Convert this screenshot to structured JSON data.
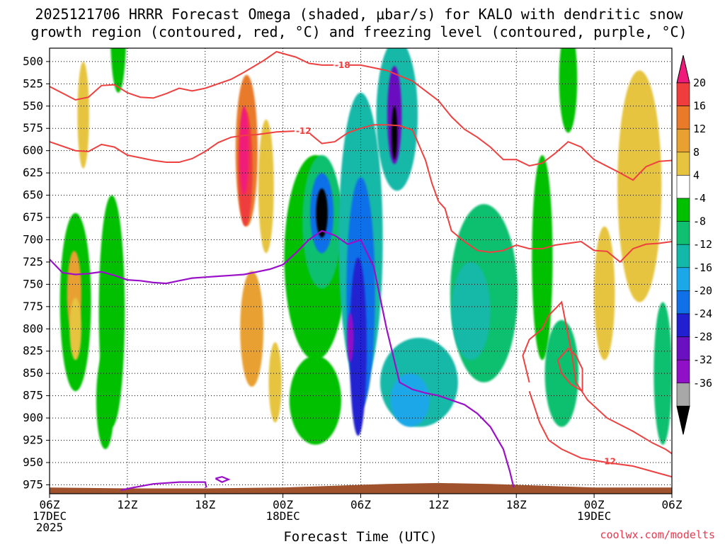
{
  "chart_data": {
    "type": "heatmap",
    "title_line1": "2025121706 HRRR Forecast Omega (shaded, μbar/s) for KALO with dendritic snow",
    "title_line2": "growth region (contoured, red, °C) and freezing level (contoured, purple, °C)",
    "xlabel": "Forecast Time (UTC)",
    "credit": "coolwx.com/modelts",
    "x_hours_range": [
      0,
      48
    ],
    "y_pressure_range": [
      485,
      985
    ],
    "y_ticks": [
      500,
      525,
      550,
      575,
      600,
      625,
      650,
      675,
      700,
      725,
      750,
      775,
      800,
      825,
      850,
      875,
      900,
      925,
      950,
      975
    ],
    "x_ticks": [
      {
        "hour": 0,
        "lines": [
          "06Z",
          "17DEC",
          "2025"
        ]
      },
      {
        "hour": 6,
        "lines": [
          "12Z"
        ]
      },
      {
        "hour": 12,
        "lines": [
          "18Z"
        ]
      },
      {
        "hour": 18,
        "lines": [
          "00Z",
          "18DEC"
        ]
      },
      {
        "hour": 24,
        "lines": [
          "06Z"
        ]
      },
      {
        "hour": 30,
        "lines": [
          "12Z"
        ]
      },
      {
        "hour": 36,
        "lines": [
          "18Z"
        ]
      },
      {
        "hour": 42,
        "lines": [
          "00Z",
          "19DEC"
        ]
      },
      {
        "hour": 48,
        "lines": [
          "06Z"
        ]
      }
    ],
    "colorbar": {
      "labels": [
        "20",
        "16",
        "12",
        "8",
        "4",
        "-4",
        "-8",
        "-12",
        "-16",
        "-20",
        "-24",
        "-28",
        "-32",
        "-36"
      ],
      "colors": [
        "#ef3d3d",
        "#e87a2a",
        "#e8a030",
        "#e6c440",
        "#ffffff",
        "#00c000",
        "#10c070",
        "#14b8a8",
        "#1ca8e8",
        "#1070e8",
        "#2020d0",
        "#6a10c0",
        "#9010c8",
        "#a8a8a8"
      ],
      "top_color": "#f01a7a",
      "bottom_color": "#000000"
    },
    "omega_cells": [
      {
        "name": "lower-lead-green",
        "t": 2.0,
        "p": 770,
        "dt": 1.2,
        "dp": 200,
        "v": -5
      },
      {
        "name": "lower-lead-green-2",
        "t": 4.3,
        "p": 880,
        "dt": 0.7,
        "dp": 110,
        "v": -7
      },
      {
        "name": "upper-green-column",
        "t": 5.3,
        "p": 470,
        "dt": 0.6,
        "dp": 130,
        "v": -5
      },
      {
        "name": "early-green-column",
        "t": 4.8,
        "p": 780,
        "dt": 1.0,
        "dp": 260,
        "v": -6
      },
      {
        "name": "left-yellow-strand",
        "t": 2.6,
        "p": 560,
        "dt": 0.45,
        "dp": 120,
        "v": 6
      },
      {
        "name": "left-orange-strand",
        "t": 1.9,
        "p": 760,
        "dt": 0.55,
        "dp": 95,
        "v": 11
      },
      {
        "name": "left-orange-low",
        "t": 2.0,
        "p": 800,
        "dt": 0.45,
        "dp": 70,
        "v": 8
      },
      {
        "name": "pink-core-outer",
        "t": 15.2,
        "p": 600,
        "dt": 0.85,
        "dp": 170,
        "v": 14
      },
      {
        "name": "pink-core-mid",
        "t": 15.1,
        "p": 620,
        "dt": 0.55,
        "dp": 130,
        "v": 19
      },
      {
        "name": "pink-core-inner",
        "t": 15.0,
        "p": 600,
        "dt": 0.35,
        "dp": 100,
        "v": 23
      },
      {
        "name": "orange-lower-trail",
        "t": 15.6,
        "p": 800,
        "dt": 0.9,
        "dp": 130,
        "v": 9
      },
      {
        "name": "yellow-flank",
        "t": 16.7,
        "p": 640,
        "dt": 0.6,
        "dp": 150,
        "v": 6
      },
      {
        "name": "yellow-lower-flank",
        "t": 17.4,
        "p": 860,
        "dt": 0.5,
        "dp": 90,
        "v": 6
      },
      {
        "name": "mid-green-mass",
        "t": 20.5,
        "p": 720,
        "dt": 2.4,
        "dp": 230,
        "v": -6
      },
      {
        "name": "mid-green-lower",
        "t": 20.5,
        "p": 880,
        "dt": 2.0,
        "dp": 100,
        "v": -7
      },
      {
        "name": "first-updraft-outer",
        "t": 21.0,
        "p": 680,
        "dt": 1.5,
        "dp": 150,
        "v": -11
      },
      {
        "name": "first-updraft-mid",
        "t": 21.0,
        "p": 670,
        "dt": 0.9,
        "dp": 90,
        "v": -20
      },
      {
        "name": "first-updraft-core",
        "t": 21.0,
        "p": 670,
        "dt": 0.45,
        "dp": 55,
        "v": -38
      },
      {
        "name": "main-column-outer",
        "t": 24.0,
        "p": 700,
        "dt": 1.7,
        "dp": 330,
        "v": -12
      },
      {
        "name": "main-column-blue",
        "t": 24.0,
        "p": 760,
        "dt": 1.1,
        "dp": 260,
        "v": -20
      },
      {
        "name": "main-column-purple",
        "t": 23.8,
        "p": 820,
        "dt": 0.65,
        "dp": 200,
        "v": -27
      },
      {
        "name": "main-column-gray",
        "t": 23.2,
        "p": 810,
        "dt": 0.25,
        "dp": 55,
        "v": -33
      },
      {
        "name": "upper-column-outer",
        "t": 26.8,
        "p": 560,
        "dt": 1.6,
        "dp": 170,
        "v": -12
      },
      {
        "name": "upper-column-purple",
        "t": 26.6,
        "p": 560,
        "dt": 0.55,
        "dp": 110,
        "v": -28
      },
      {
        "name": "upper-column-core",
        "t": 26.6,
        "p": 580,
        "dt": 0.22,
        "dp": 60,
        "v": -40
      },
      {
        "name": "lower-cyan-mass",
        "t": 28.5,
        "p": 860,
        "dt": 3.0,
        "dp": 100,
        "v": -12
      },
      {
        "name": "lower-cyan-blue",
        "t": 27.8,
        "p": 880,
        "dt": 1.5,
        "dp": 60,
        "v": -16
      },
      {
        "name": "right-green-mass",
        "t": 33.5,
        "p": 760,
        "dt": 2.6,
        "dp": 200,
        "v": -8
      },
      {
        "name": "right-cyan-mass",
        "t": 32.5,
        "p": 780,
        "dt": 1.5,
        "dp": 110,
        "v": -12
      },
      {
        "name": "late-green-strand",
        "t": 38.0,
        "p": 720,
        "dt": 0.8,
        "dp": 230,
        "v": -6
      },
      {
        "name": "late-green-low",
        "t": 39.5,
        "p": 850,
        "dt": 1.3,
        "dp": 120,
        "v": -8
      },
      {
        "name": "late-yellow",
        "t": 42.8,
        "p": 760,
        "dt": 0.8,
        "dp": 150,
        "v": 6
      },
      {
        "name": "right-orange-column",
        "t": 45.6,
        "p": 620,
        "dt": 1.2,
        "dp": 170,
        "v": 11
      },
      {
        "name": "right-yellow-column",
        "t": 45.5,
        "p": 640,
        "dt": 1.7,
        "dp": 260,
        "v": 6
      },
      {
        "name": "far-right-green",
        "t": 47.3,
        "p": 850,
        "dt": 0.7,
        "dp": 160,
        "v": -8
      },
      {
        "name": "upper-right-green",
        "t": 40.0,
        "p": 520,
        "dt": 0.7,
        "dp": 120,
        "v": -6
      }
    ],
    "dgz_contours": [
      {
        "label": "-18",
        "label_at": [
          22.0,
          504
        ],
        "points": [
          [
            0,
            528
          ],
          [
            2,
            543
          ],
          [
            3,
            540
          ],
          [
            4,
            527
          ],
          [
            5,
            526
          ],
          [
            6,
            535
          ],
          [
            7,
            540
          ],
          [
            8,
            541
          ],
          [
            9,
            536
          ],
          [
            10,
            530
          ],
          [
            11,
            533
          ],
          [
            12,
            530
          ],
          [
            14,
            520
          ],
          [
            15,
            512
          ],
          [
            16.5,
            499
          ],
          [
            17.5,
            489
          ],
          [
            19,
            495
          ],
          [
            20,
            502
          ],
          [
            21,
            504
          ],
          [
            22,
            504
          ],
          [
            24,
            504
          ],
          [
            26,
            510
          ],
          [
            28,
            522
          ],
          [
            30,
            544
          ],
          [
            31,
            562
          ],
          [
            32,
            576
          ],
          [
            33,
            585
          ],
          [
            34,
            596
          ],
          [
            35,
            610
          ],
          [
            36,
            610
          ],
          [
            37,
            617
          ],
          [
            38,
            614
          ],
          [
            39,
            603
          ],
          [
            40,
            590
          ],
          [
            41,
            596
          ],
          [
            42,
            610
          ],
          [
            44,
            625
          ],
          [
            45,
            633
          ],
          [
            46,
            618
          ],
          [
            47,
            612
          ],
          [
            48,
            611
          ]
        ]
      },
      {
        "label": "-12",
        "label_at": [
          19.0,
          578
        ],
        "points": [
          [
            0,
            590
          ],
          [
            2,
            600
          ],
          [
            3,
            601
          ],
          [
            4,
            593
          ],
          [
            5,
            596
          ],
          [
            6,
            605
          ],
          [
            8,
            611
          ],
          [
            9,
            613
          ],
          [
            10,
            613
          ],
          [
            11,
            609
          ],
          [
            12,
            601
          ],
          [
            13,
            591
          ],
          [
            14,
            585
          ],
          [
            15,
            583
          ],
          [
            16,
            582
          ],
          [
            17.5,
            579
          ],
          [
            19,
            578
          ],
          [
            20,
            580
          ],
          [
            21,
            592
          ],
          [
            22,
            590
          ],
          [
            23,
            580
          ],
          [
            24,
            575
          ],
          [
            25,
            571
          ],
          [
            26,
            571
          ],
          [
            27,
            572
          ],
          [
            28,
            577
          ],
          [
            29,
            611
          ],
          [
            29.5,
            637
          ],
          [
            30,
            657
          ],
          [
            30.5,
            665
          ],
          [
            31,
            690
          ],
          [
            32,
            702
          ],
          [
            33,
            712
          ],
          [
            34,
            714
          ],
          [
            35,
            712
          ],
          [
            36,
            706
          ],
          [
            37,
            710
          ],
          [
            38,
            710
          ],
          [
            39,
            706
          ],
          [
            40,
            704
          ],
          [
            41,
            702
          ],
          [
            42,
            712
          ],
          [
            43,
            713
          ],
          [
            44,
            725
          ],
          [
            45,
            710
          ],
          [
            46,
            705
          ],
          [
            47,
            704
          ],
          [
            48,
            702
          ]
        ]
      },
      {
        "label": "-12",
        "label_at": [
          42.5,
          949
        ],
        "points": [
          [
            37,
            860
          ],
          [
            36.5,
            830
          ],
          [
            37,
            812
          ],
          [
            38,
            800
          ],
          [
            38.5,
            785
          ],
          [
            39.5,
            770
          ],
          [
            40.3,
            830
          ],
          [
            40.6,
            860
          ],
          [
            41.5,
            880
          ],
          [
            43,
            900
          ],
          [
            45,
            915
          ],
          [
            46.5,
            928
          ],
          [
            47.5,
            935
          ],
          [
            48,
            940
          ]
        ]
      },
      {
        "label": "",
        "label_at": [
          0,
          0
        ],
        "points": [
          [
            37,
            870
          ],
          [
            37.8,
            905
          ],
          [
            38.5,
            925
          ],
          [
            39.5,
            935
          ],
          [
            41,
            945
          ],
          [
            43,
            950
          ],
          [
            45,
            954
          ],
          [
            47,
            962
          ],
          [
            48,
            966
          ]
        ]
      },
      {
        "label": "",
        "label_at": [
          0,
          0
        ],
        "points": [
          [
            39.2,
            835
          ],
          [
            40.0,
            822
          ],
          [
            40.6,
            830
          ],
          [
            41.1,
            845
          ],
          [
            41.1,
            870
          ],
          [
            40.2,
            862
          ],
          [
            39.5,
            850
          ],
          [
            39.2,
            835
          ]
        ]
      }
    ],
    "freezing_contours": [
      {
        "label": "",
        "points": [
          [
            0,
            722
          ],
          [
            1,
            737
          ],
          [
            2,
            739
          ],
          [
            3,
            738
          ],
          [
            4,
            736
          ],
          [
            5,
            740
          ],
          [
            6,
            745
          ],
          [
            7,
            746
          ],
          [
            8,
            748
          ],
          [
            9,
            749
          ],
          [
            10,
            746
          ],
          [
            11,
            743
          ],
          [
            12,
            742
          ],
          [
            13,
            741
          ],
          [
            14,
            740
          ],
          [
            15,
            739
          ],
          [
            16,
            736
          ],
          [
            17,
            733
          ],
          [
            18,
            728
          ],
          [
            19,
            715
          ],
          [
            20,
            700
          ],
          [
            21,
            690
          ],
          [
            22,
            695
          ],
          [
            23,
            705
          ],
          [
            24,
            700
          ],
          [
            25,
            730
          ],
          [
            26,
            800
          ],
          [
            27,
            860
          ],
          [
            28,
            868
          ],
          [
            29,
            872
          ],
          [
            30,
            875
          ],
          [
            31,
            880
          ],
          [
            32,
            885
          ],
          [
            33,
            895
          ],
          [
            34,
            910
          ],
          [
            35,
            935
          ],
          [
            35.5,
            960
          ],
          [
            35.8,
            978
          ]
        ]
      },
      {
        "label": "",
        "points": [
          [
            5.5,
            981
          ],
          [
            6.5,
            978
          ],
          [
            8,
            974
          ],
          [
            10,
            972
          ],
          [
            12,
            972
          ],
          [
            12.1,
            978
          ]
        ]
      },
      {
        "label": "",
        "points": [
          [
            12.8,
            968
          ],
          [
            13.3,
            966
          ],
          [
            13.8,
            969
          ],
          [
            13.3,
            972
          ],
          [
            12.8,
            968
          ]
        ]
      }
    ],
    "terrain_pressure": [
      [
        0,
        978
      ],
      [
        6,
        979
      ],
      [
        12,
        979
      ],
      [
        18,
        978
      ],
      [
        22,
        976
      ],
      [
        26,
        974
      ],
      [
        30,
        973
      ],
      [
        34,
        974
      ],
      [
        38,
        976
      ],
      [
        42,
        978
      ],
      [
        48,
        978
      ]
    ]
  }
}
